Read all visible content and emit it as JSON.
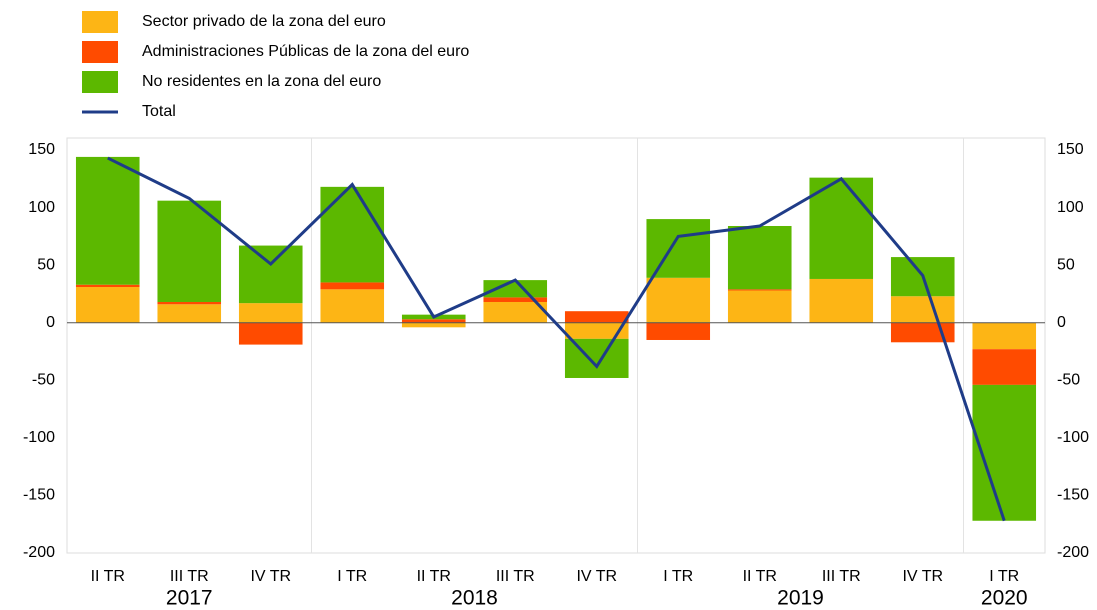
{
  "chart_data": {
    "type": "bar",
    "stacked": true,
    "categories": [
      "II TR",
      "III TR",
      "IV TR",
      "I TR",
      "II TR",
      "III TR",
      "IV TR",
      "I TR",
      "II TR",
      "III TR",
      "IV TR",
      "I TR"
    ],
    "year_groups": [
      {
        "label": "2017",
        "start": 0,
        "end": 2
      },
      {
        "label": "2018",
        "start": 3,
        "end": 6
      },
      {
        "label": "2019",
        "start": 7,
        "end": 10
      },
      {
        "label": "2020",
        "start": 11,
        "end": 11
      }
    ],
    "series": [
      {
        "name": "Sector privado de la zona del euro",
        "color": "#fdb515",
        "values": [
          31,
          16,
          17,
          29,
          -4,
          18,
          -14,
          39,
          28,
          38,
          23,
          -23
        ]
      },
      {
        "name": "Administraciones Públicas de la zona del euro",
        "color": "#ff4b00",
        "values": [
          2,
          2,
          -19,
          6,
          3,
          4,
          10,
          -15,
          1,
          0,
          -17,
          -31
        ]
      },
      {
        "name": "No residentes en la zona del euro",
        "color": "#5cb800",
        "values": [
          111,
          88,
          50,
          83,
          4,
          15,
          -34,
          51,
          55,
          88,
          34,
          -118
        ]
      },
      {
        "name": "Total",
        "color": "#1f3c88",
        "type": "line",
        "values": [
          143,
          108,
          51,
          120,
          5,
          37,
          -38,
          75,
          84,
          125,
          41,
          -172
        ]
      }
    ],
    "ylim": [
      -200,
      150
    ],
    "yticks": [
      150,
      100,
      50,
      0,
      -50,
      -100,
      -150,
      -200
    ],
    "y2lim": [
      -200,
      150
    ],
    "y2ticks": [
      150,
      100,
      50,
      0,
      -50,
      -100,
      -150,
      -200
    ],
    "grid": false
  }
}
